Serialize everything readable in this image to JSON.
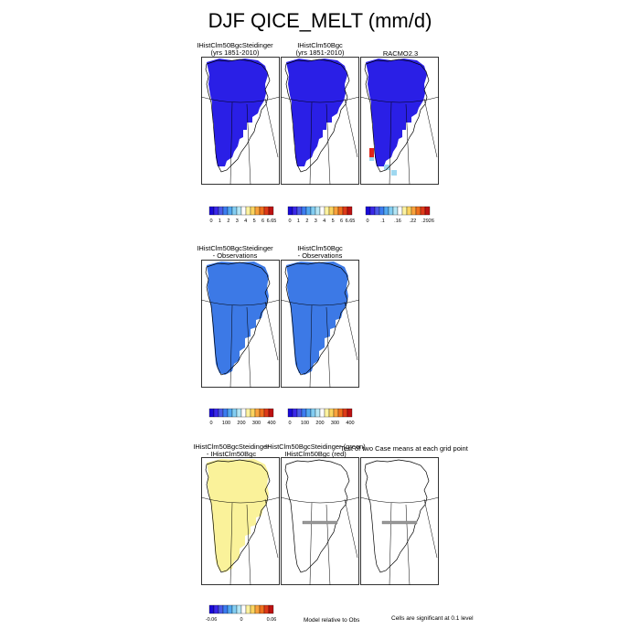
{
  "figure": {
    "title": "DJF QICE_MELT (mm/d)",
    "colors": {
      "deep_blue": "#2a1fe6",
      "mid_blue": "#3c79e6",
      "yellow": "#faf29a",
      "red": "#e02418",
      "light_cyan": "#9fd8f0",
      "outline": "#000000"
    }
  },
  "rows": [
    {
      "panels": [
        {
          "title_line1": "IHistClm50BgcSteidinger",
          "title_line2": "(yrs 1851-2010)",
          "fill": "deep_blue",
          "kind": "model"
        },
        {
          "title_line1": "IHistClm50Bgc",
          "title_line2": "(yrs 1851-2010)",
          "fill": "deep_blue",
          "kind": "model"
        },
        {
          "title_line1": "RACMO2.3",
          "title_line2": "",
          "fill": "deep_blue",
          "kind": "obs"
        }
      ],
      "colorbars": [
        {
          "labels": [
            "0",
            "1",
            "2",
            "3",
            "4",
            "5",
            "6",
            "6.65"
          ]
        },
        {
          "labels": [
            "0",
            "1",
            "2",
            "3",
            "4",
            "5",
            "6",
            "6.65"
          ]
        },
        {
          "labels": [
            "0",
            ".1",
            ".16",
            ".22",
            ".2926"
          ]
        }
      ]
    },
    {
      "panels": [
        {
          "title_line1": "IHistClm50BgcSteidinger",
          "title_line2": "- Observations",
          "fill": "mid_blue",
          "kind": "diff"
        },
        {
          "title_line1": "IHistClm50Bgc",
          "title_line2": "- Observations",
          "fill": "mid_blue",
          "kind": "diff"
        }
      ],
      "colorbars": [
        {
          "labels": [
            "0",
            "100",
            "200",
            "300",
            "400"
          ]
        },
        {
          "labels": [
            "0",
            "100",
            "200",
            "300",
            "400"
          ]
        }
      ]
    },
    {
      "panels": [
        {
          "title_line1": "IHistClm50BgcSteidinger",
          "title_line2": "- IHistClm50Bgc",
          "fill": "yellow",
          "kind": "diff"
        },
        {
          "title_line1": "IHistClm50BgcSteidinger (green)",
          "title_line2": "IHistClm50Bgc (red)",
          "fill": "none",
          "kind": "sig"
        },
        {
          "title_line1": "Test of two Case means at each grid point",
          "title_line2": "",
          "fill": "none",
          "kind": "sig"
        }
      ],
      "colorbars": [
        {
          "labels": [
            "-0.06",
            "0",
            "0.06"
          ]
        }
      ],
      "notes": {
        "model_relative": "Model relative to Obs",
        "significance": "Cells are significant at 0.1 level"
      }
    }
  ],
  "chart_data": {
    "type": "heatmap",
    "title": "DJF QICE_MELT (mm/d)",
    "variable": "QICE_MELT",
    "season": "DJF",
    "units": "mm/d",
    "region": "Greenland",
    "panels": [
      {
        "name": "IHistClm50BgcSteidinger (yrs 1851-2010)",
        "range": [
          0,
          6.65
        ],
        "dominant_value": 0
      },
      {
        "name": "IHistClm50Bgc (yrs 1851-2010)",
        "range": [
          0,
          6.65
        ],
        "dominant_value": 0
      },
      {
        "name": "RACMO2.3",
        "range": [
          0,
          0.2926
        ],
        "dominant_value": 0,
        "max_value": 0.2926
      },
      {
        "name": "IHistClm50BgcSteidinger - Observations",
        "range": [
          0,
          400
        ],
        "dominant_value": 0
      },
      {
        "name": "IHistClm50Bgc - Observations",
        "range": [
          0,
          400
        ],
        "dominant_value": 0
      },
      {
        "name": "IHistClm50BgcSteidinger - IHistClm50Bgc",
        "range": [
          -0.06,
          0.06
        ],
        "dominant_value": 0
      }
    ],
    "colorbar_ticks": {
      "model": [
        0,
        1,
        2,
        3,
        4,
        5,
        6,
        6.65
      ],
      "obs": [
        0,
        0.1,
        0.16,
        0.22,
        0.2926
      ],
      "percent_diff": [
        0,
        100,
        200,
        300,
        400
      ],
      "model_diff": [
        -0.06,
        0,
        0.06
      ]
    }
  }
}
